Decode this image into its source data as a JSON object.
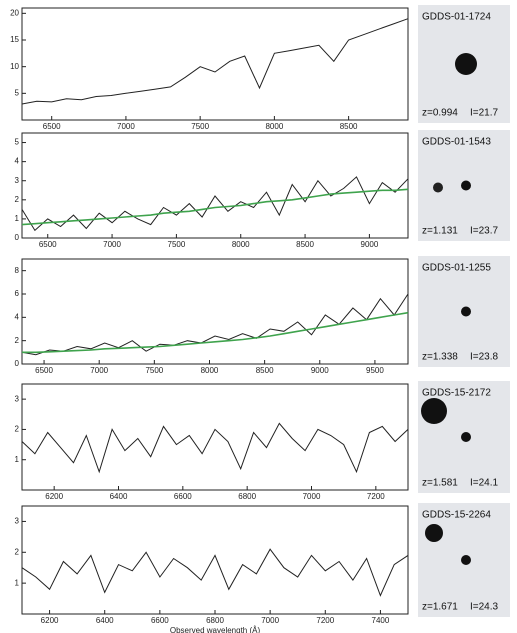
{
  "chart_data": [
    {
      "type": "line",
      "xlim": [
        6300,
        8900
      ],
      "ylim": [
        0,
        21
      ],
      "xticks": [
        6500,
        7000,
        7500,
        8000,
        8500
      ],
      "yticks": [
        5,
        10,
        15,
        20
      ],
      "x": [
        6300,
        6400,
        6500,
        6600,
        6700,
        6800,
        6900,
        7000,
        7100,
        7200,
        7300,
        7400,
        7500,
        7600,
        7700,
        7800,
        7900,
        8000,
        8100,
        8200,
        8300,
        8400,
        8500,
        8600,
        8700,
        8800,
        8900
      ],
      "series": [
        {
          "color": "#222222",
          "values": [
            3,
            3.5,
            3.4,
            4,
            3.8,
            4.4,
            4.6,
            5,
            5.4,
            5.8,
            6.2,
            8,
            10,
            9,
            11,
            12,
            6,
            12.5,
            13,
            13.5,
            14,
            11,
            15,
            16,
            17,
            18,
            19
          ]
        }
      ],
      "annotations": [
        "GDDS-01-1724",
        "z=0.994",
        "I=21.7"
      ]
    },
    {
      "type": "line",
      "xlim": [
        6300,
        9300
      ],
      "ylim": [
        0,
        5.5
      ],
      "xticks": [
        6500,
        7000,
        7500,
        8000,
        8500,
        9000
      ],
      "yticks": [
        0,
        1,
        2,
        3,
        4,
        5
      ],
      "x": [
        6300,
        6400,
        6500,
        6600,
        6700,
        6800,
        6900,
        7000,
        7100,
        7200,
        7300,
        7400,
        7500,
        7600,
        7700,
        7800,
        7900,
        8000,
        8100,
        8200,
        8300,
        8400,
        8500,
        8600,
        8700,
        8800,
        8900,
        9000,
        9100,
        9200,
        9300
      ],
      "series": [
        {
          "color": "#222222",
          "values": [
            1.5,
            0.4,
            1,
            0.6,
            1.2,
            0.5,
            1.3,
            0.8,
            1.4,
            1,
            0.7,
            1.6,
            1.2,
            1.8,
            1.1,
            2.2,
            1.4,
            1.9,
            1.6,
            2.4,
            1.2,
            2.8,
            1.9,
            3,
            2.2,
            2.6,
            3.2,
            1.8,
            2.9,
            2.4,
            3.1
          ]
        },
        {
          "color": "#3fa34d",
          "values": [
            0.7,
            0.75,
            0.8,
            0.85,
            0.9,
            0.95,
            1,
            1.05,
            1.1,
            1.15,
            1.2,
            1.3,
            1.35,
            1.4,
            1.5,
            1.6,
            1.65,
            1.7,
            1.8,
            1.9,
            1.95,
            2,
            2.1,
            2.2,
            2.3,
            2.35,
            2.4,
            2.45,
            2.5,
            2.5,
            2.55
          ]
        }
      ],
      "annotations": [
        "GDDS-01-1543",
        "z=1.131",
        "I=23.7"
      ]
    },
    {
      "type": "line",
      "xlim": [
        6300,
        9800
      ],
      "ylim": [
        0,
        9
      ],
      "xticks": [
        6500,
        7000,
        7500,
        8000,
        8500,
        9000,
        9500
      ],
      "yticks": [
        0,
        2,
        4,
        6,
        8
      ],
      "x": [
        6300,
        6425,
        6550,
        6675,
        6800,
        6925,
        7050,
        7175,
        7300,
        7425,
        7550,
        7675,
        7800,
        7925,
        8050,
        8175,
        8300,
        8425,
        8550,
        8675,
        8800,
        8925,
        9050,
        9175,
        9300,
        9425,
        9550,
        9675,
        9800
      ],
      "series": [
        {
          "color": "#222222",
          "values": [
            1,
            0.8,
            1.2,
            1.1,
            1.5,
            1.3,
            1.8,
            1.4,
            2,
            1.1,
            1.7,
            1.6,
            2,
            1.8,
            2.4,
            2.1,
            2.6,
            2.2,
            3,
            2.8,
            3.6,
            2.5,
            4.2,
            3.4,
            4.8,
            3.8,
            5.6,
            4.2,
            6
          ]
        },
        {
          "color": "#3fa34d",
          "values": [
            1,
            1,
            1.05,
            1.1,
            1.15,
            1.2,
            1.3,
            1.35,
            1.4,
            1.45,
            1.5,
            1.6,
            1.7,
            1.8,
            1.9,
            2,
            2.1,
            2.25,
            2.4,
            2.6,
            2.8,
            3,
            3.2,
            3.4,
            3.6,
            3.8,
            4,
            4.2,
            4.4
          ]
        }
      ],
      "annotations": [
        "GDDS-01-1255",
        "z=1.338",
        "I=23.8"
      ]
    },
    {
      "type": "line",
      "xlim": [
        6100,
        7300
      ],
      "ylim": [
        0,
        3.5
      ],
      "xticks": [
        6200,
        6400,
        6600,
        6800,
        7000,
        7200
      ],
      "yticks": [
        1,
        2,
        3
      ],
      "x": [
        6100,
        6140,
        6180,
        6220,
        6260,
        6300,
        6340,
        6380,
        6420,
        6460,
        6500,
        6540,
        6580,
        6620,
        6660,
        6700,
        6740,
        6780,
        6820,
        6860,
        6900,
        6940,
        6980,
        7020,
        7060,
        7100,
        7140,
        7180,
        7220,
        7260,
        7300
      ],
      "series": [
        {
          "color": "#222222",
          "values": [
            1.6,
            1.2,
            1.9,
            1.4,
            0.9,
            1.8,
            0.6,
            2,
            1.3,
            1.7,
            1.1,
            2.1,
            1.5,
            1.8,
            1.2,
            2,
            1.6,
            0.7,
            1.9,
            1.4,
            2.2,
            1.7,
            1.3,
            2,
            1.8,
            1.5,
            0.6,
            1.9,
            2.1,
            1.6,
            2
          ]
        }
      ],
      "annotations": [
        "GDDS-15-2172",
        "z=1.581",
        "I=24.1"
      ]
    },
    {
      "type": "line",
      "xlim": [
        6100,
        7500
      ],
      "ylim": [
        0,
        3.5
      ],
      "xticks": [
        6200,
        6400,
        6600,
        6800,
        7000,
        7200,
        7400
      ],
      "yticks": [
        1,
        2,
        3
      ],
      "xlabel": "Observed wavelength (Å)",
      "x": [
        6100,
        6150,
        6200,
        6250,
        6300,
        6350,
        6400,
        6450,
        6500,
        6550,
        6600,
        6650,
        6700,
        6750,
        6800,
        6850,
        6900,
        6950,
        7000,
        7050,
        7100,
        7150,
        7200,
        7250,
        7300,
        7350,
        7400,
        7450,
        7500
      ],
      "series": [
        {
          "color": "#222222",
          "values": [
            1.5,
            1.2,
            0.8,
            1.7,
            1.3,
            1.9,
            0.7,
            1.6,
            1.4,
            2,
            1.2,
            1.8,
            1.5,
            1.1,
            1.9,
            0.8,
            1.6,
            1.3,
            2.1,
            1.5,
            1.2,
            1.9,
            1.4,
            1.7,
            1.1,
            1.8,
            0.6,
            1.6,
            1.9
          ]
        }
      ],
      "annotations": [
        "GDDS-15-2264",
        "z=1.671",
        "I=24.3"
      ]
    }
  ]
}
